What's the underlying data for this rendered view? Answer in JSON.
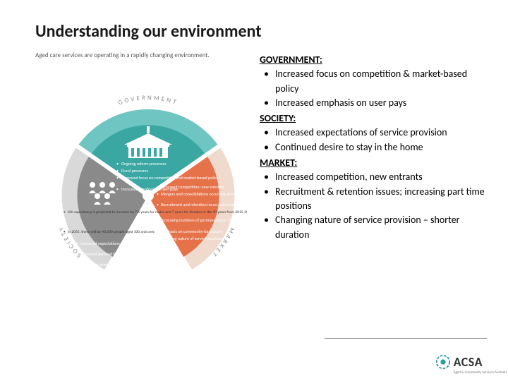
{
  "title": "Understanding our environment",
  "intro": "Aged care services are operating in a rapidly changing environment.",
  "sections": [
    {
      "head": "GOVERNMENT:",
      "bullets": [
        "Increased focus on competition & market-based policy",
        "Increased emphasis on user pays"
      ]
    },
    {
      "head": "SOCIETY:",
      "bullets": [
        "Increased expectations of service provision",
        "Continued desire to stay in the home"
      ]
    },
    {
      "head": "MARKET:",
      "bullets": [
        "Increased competition, new entrants",
        "Recruitment & retention issues; increasing part time positions",
        "Changing nature of service provision – shorter duration"
      ]
    }
  ],
  "diagram": {
    "segments": [
      {
        "key": "government",
        "label": "GOVERNMENT",
        "color": "#6fc5c2",
        "inner_color": "#3aa7a3",
        "icon": "parliament",
        "bullets": [
          "Ongoing reform processes",
          "Fiscal pressures",
          "Increased focus on competition and market-based policy",
          "Increased emphasis on user pays"
        ]
      },
      {
        "key": "market",
        "label": "MARKET",
        "color": "#f0d9cd",
        "inner_color": "#e6724a",
        "icon": "market",
        "bullets": [
          "Increased competition; new entrants",
          "Mergers and consolidations occurring already",
          "Recruitment and retention issues particularly for services in rural and remote locations",
          "Increasing numbers of permanent part time positions",
          "Emphasis on community-based care",
          "Changing nature of service provision; shorter lengths of stay"
        ]
      },
      {
        "key": "society",
        "label": "SOCIETY",
        "color": "#d9d9d9",
        "inner_color": "#8a8a8a",
        "icon": "people",
        "bullets": [
          "Life expectancy is projected to increase by 7.6 years for males and 7 years for females in the 40 years from 2015-2055.",
          "In 2055, there will be 40,000 people aged 100 and over.",
          "Increased expectations of service provision",
          "Increased demand for affordable age-friendly housing",
          "Continued desire to remain in the home"
        ]
      }
    ]
  },
  "logo": {
    "text": "ACSA",
    "sub": "Aged & Community Services Australia"
  },
  "colors": {
    "title": "#1a1a1a",
    "text": "#000000",
    "footer_line": "#888888",
    "logo_accent": "#2a9d9d"
  }
}
